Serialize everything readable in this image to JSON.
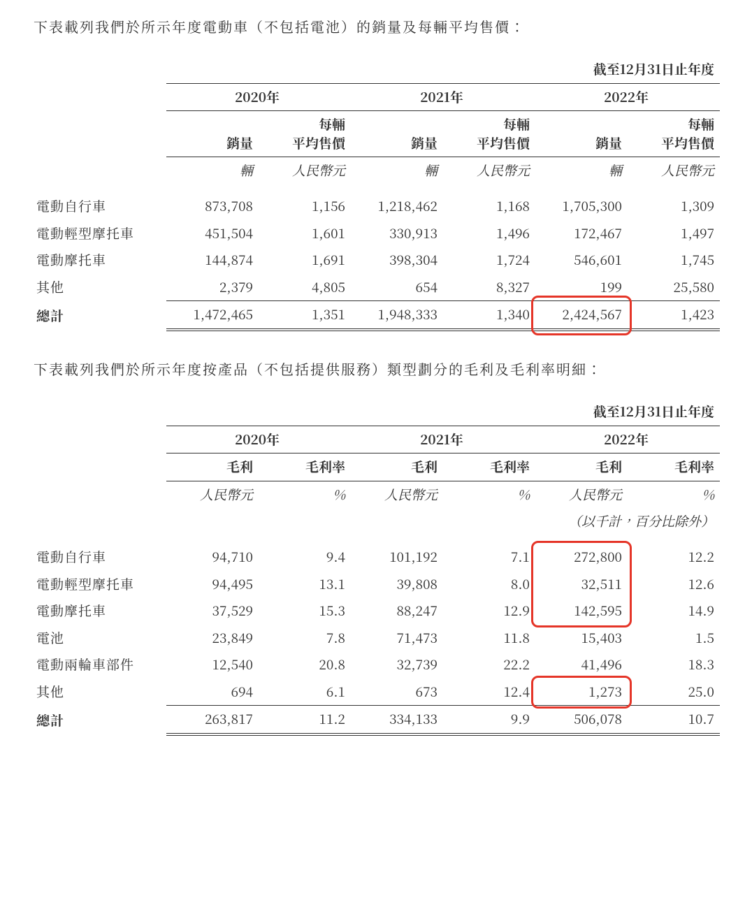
{
  "text_color": "#333333",
  "highlight_color": "#e53528",
  "background_color": "#ffffff",
  "table1": {
    "intro": "下表載列我們於所示年度電動車（不包括電池）的銷量及每輛平均售價：",
    "period_header": "截至12月31日止年度",
    "years": [
      "2020年",
      "2021年",
      "2022年"
    ],
    "subcols": {
      "volume": "銷量",
      "price": "每輛\n平均售價"
    },
    "units": {
      "volume": "輛",
      "price": "人民幣元"
    },
    "rows": [
      {
        "label": "電動自行車",
        "v": [
          "873,708",
          "1,156",
          "1,218,462",
          "1,168",
          "1,705,300",
          "1,309"
        ]
      },
      {
        "label": "電動輕型摩托車",
        "v": [
          "451,504",
          "1,601",
          "330,913",
          "1,496",
          "172,467",
          "1,497"
        ]
      },
      {
        "label": "電動摩托車",
        "v": [
          "144,874",
          "1,691",
          "398,304",
          "1,724",
          "546,601",
          "1,745"
        ]
      },
      {
        "label": "其他",
        "v": [
          "2,379",
          "4,805",
          "654",
          "8,327",
          "199",
          "25,580"
        ]
      }
    ],
    "total_label": "總計",
    "total": [
      "1,472,465",
      "1,351",
      "1,948,333",
      "1,340",
      "2,424,567",
      "1,423"
    ],
    "highlight_total_col_index": 4
  },
  "table2": {
    "intro": "下表載列我們於所示年度按產品（不包括提供服務）類型劃分的毛利及毛利率明細：",
    "period_header": "截至12月31日止年度",
    "years": [
      "2020年",
      "2021年",
      "2022年"
    ],
    "subcols": {
      "gp": "毛利",
      "gpm": "毛利率"
    },
    "units": {
      "gp": "人民幣元",
      "gpm": "%"
    },
    "sub_caption": "（以千計，百分比除外）",
    "rows": [
      {
        "label": "電動自行車",
        "v": [
          "94,710",
          "9.4",
          "101,192",
          "7.1",
          "272,800",
          "12.2"
        ]
      },
      {
        "label": "電動輕型摩托車",
        "v": [
          "94,495",
          "13.1",
          "39,808",
          "8.0",
          "32,511",
          "12.6"
        ]
      },
      {
        "label": "電動摩托車",
        "v": [
          "37,529",
          "15.3",
          "88,247",
          "12.9",
          "142,595",
          "14.9"
        ]
      },
      {
        "label": "電池",
        "v": [
          "23,849",
          "7.8",
          "71,473",
          "11.8",
          "15,403",
          "1.5"
        ]
      },
      {
        "label": "電動兩輪車部件",
        "v": [
          "12,540",
          "20.8",
          "32,739",
          "22.2",
          "41,496",
          "18.3"
        ]
      },
      {
        "label": "其他",
        "v": [
          "694",
          "6.1",
          "673",
          "12.4",
          "1,273",
          "25.0"
        ]
      }
    ],
    "total_label": "總計",
    "total": [
      "263,817",
      "11.2",
      "334,133",
      "9.9",
      "506,078",
      "10.7"
    ],
    "highlights": [
      {
        "top_row": 0,
        "bottom_row": 2,
        "col": 4
      },
      {
        "top_row": 5,
        "bottom_row": 5,
        "col": 4
      }
    ]
  }
}
